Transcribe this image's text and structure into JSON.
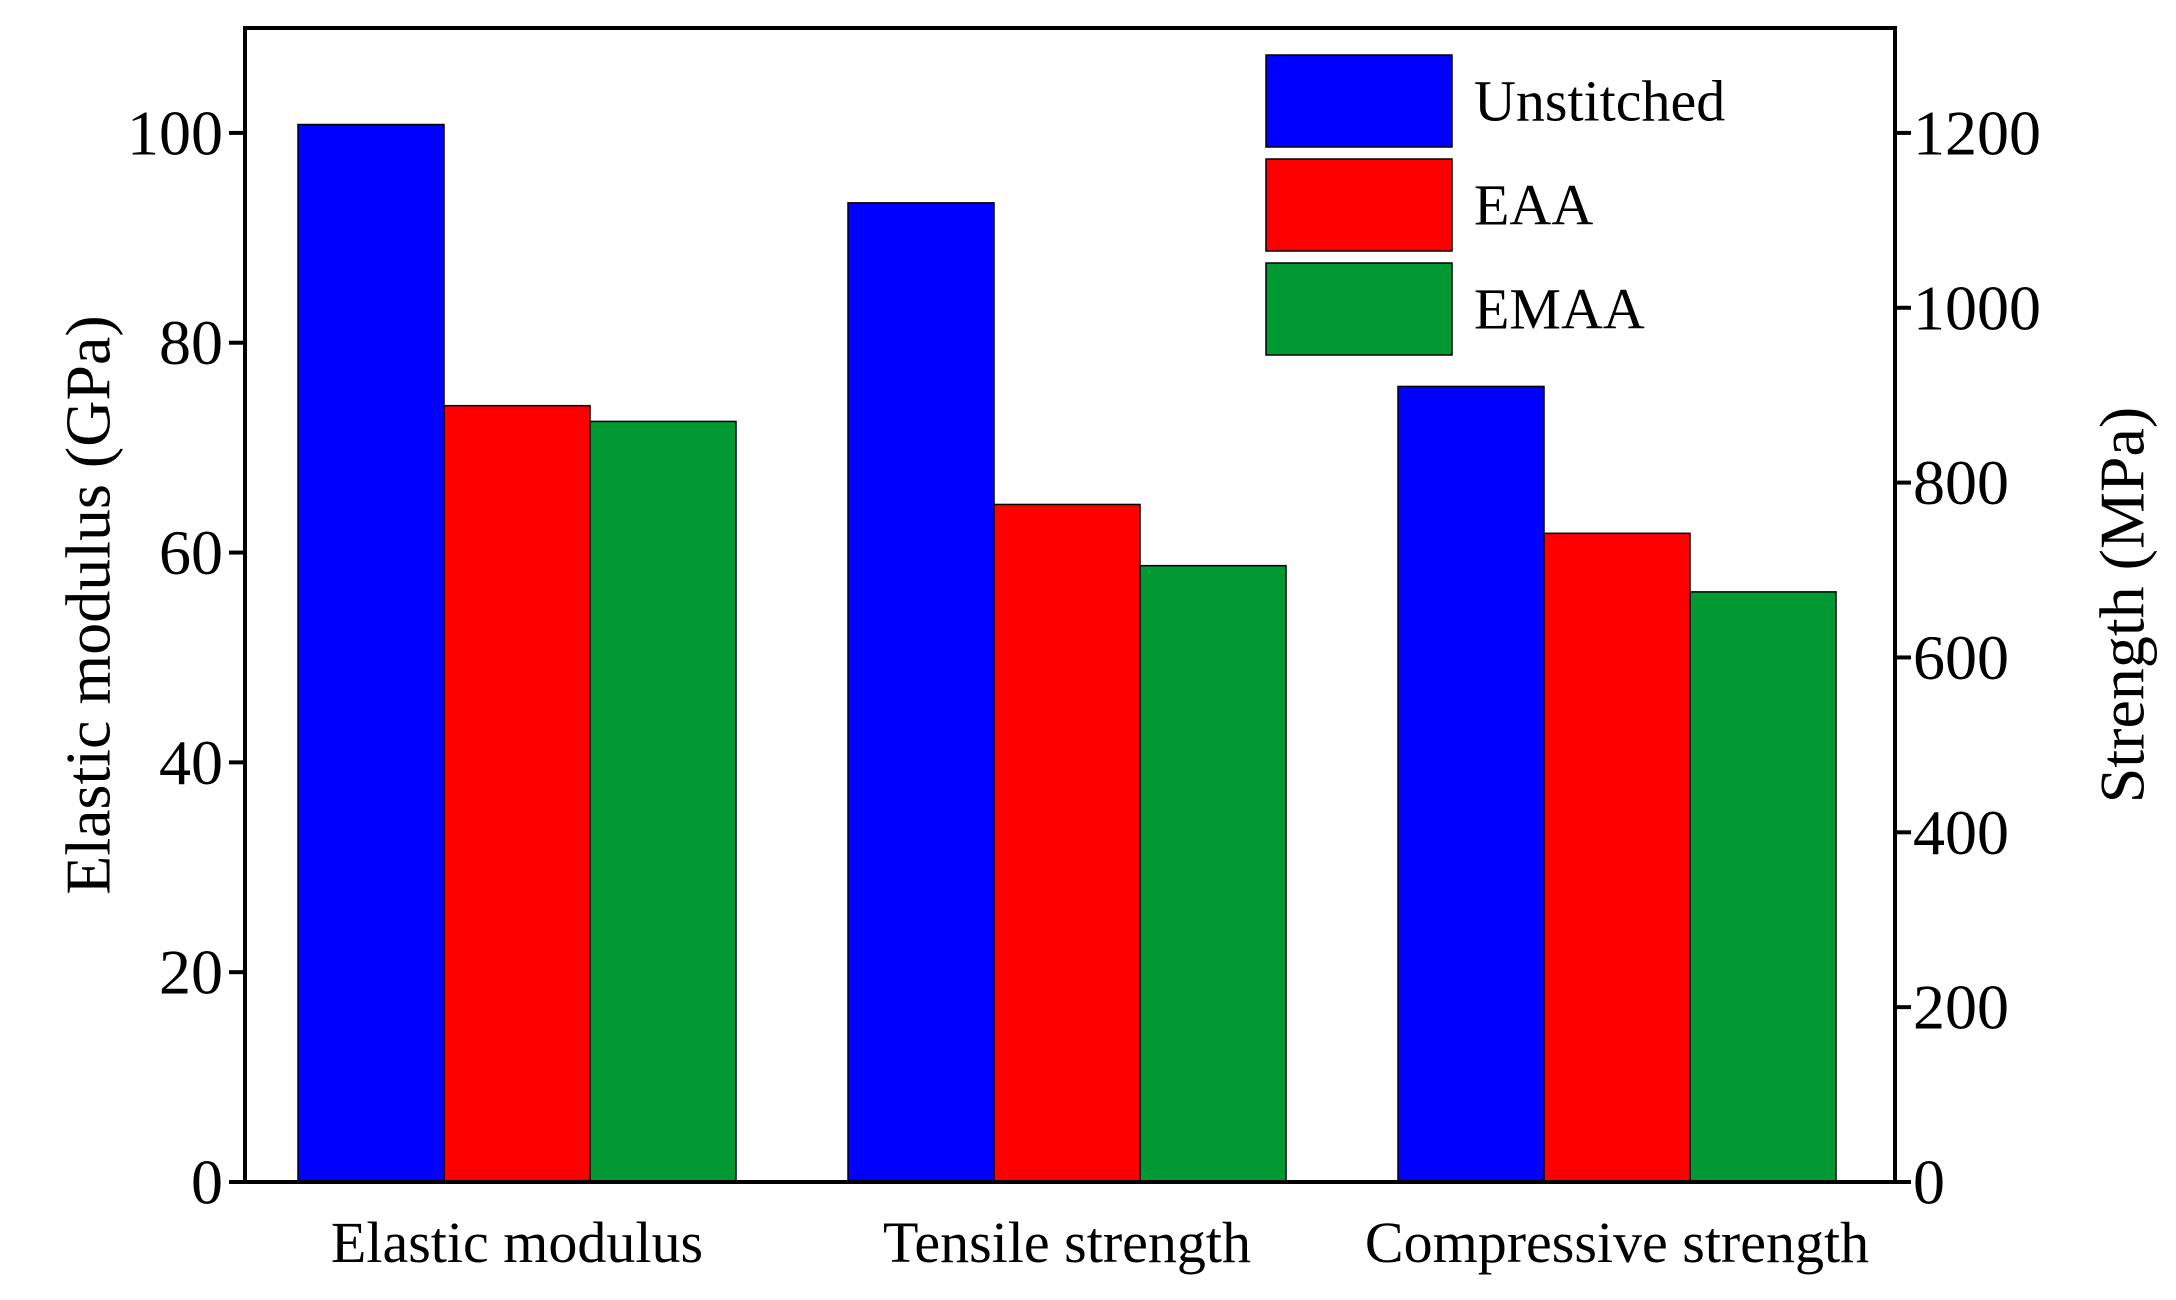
{
  "chart_data": {
    "type": "bar",
    "title": "",
    "categories": [
      "Elastic modulus",
      "Tensile strength",
      "Compressive strength"
    ],
    "series": [
      {
        "name": "Unstitched",
        "color": "#0000ff",
        "values": [
          100.8,
          1120,
          910
        ],
        "axis": [
          "left",
          "right",
          "right"
        ]
      },
      {
        "name": "EAA",
        "color": "#ff0000",
        "values": [
          74,
          775,
          742
        ],
        "axis": [
          "left",
          "right",
          "right"
        ]
      },
      {
        "name": "EMAA",
        "color": "#009933",
        "values": [
          72.5,
          705,
          675
        ],
        "axis": [
          "left",
          "right",
          "right"
        ]
      }
    ],
    "left_axis": {
      "label": "Elastic modulus (GPa)",
      "ylim": [
        0,
        110
      ],
      "ticks": [
        0,
        20,
        40,
        60,
        80,
        100
      ]
    },
    "right_axis": {
      "label": "Strength (MPa)",
      "ylim": [
        0,
        1320
      ],
      "ticks": [
        0,
        200,
        400,
        600,
        800,
        1000,
        1200
      ]
    },
    "legend_position": "top-right",
    "grid": false
  }
}
